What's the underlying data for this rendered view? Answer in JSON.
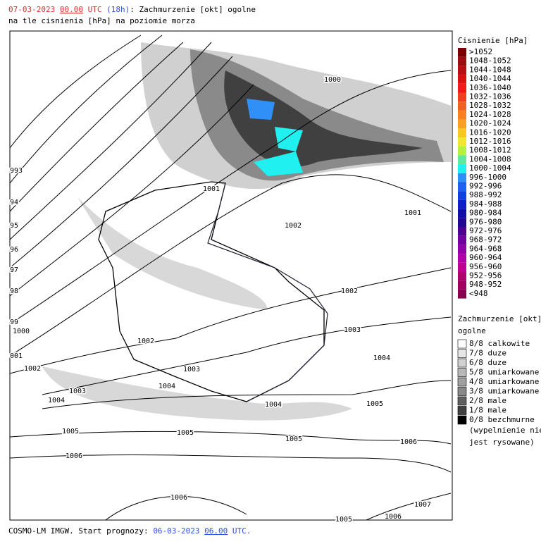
{
  "header": {
    "date": "07-03-2023",
    "time": "00.00",
    "utc": "UTC",
    "lead": "(18h)",
    "title": ": Zachmurzenie [okt] ogolne",
    "subtitle": "na tle cisnienia [hPa] na poziomie morza"
  },
  "footer": {
    "prefix": "COSMO-LM IMGW. Start prognozy:",
    "date": "06-03-2023",
    "time": "06.00",
    "utc": "UTC."
  },
  "pressure_legend": {
    "title": "Cisnienie [hPa]",
    "items": [
      {
        "label": ">1052",
        "color": "#7a0000"
      },
      {
        "label": "1048-1052",
        "color": "#9a1010"
      },
      {
        "label": "1044-1048",
        "color": "#b81010"
      },
      {
        "label": "1040-1044",
        "color": "#d81010"
      },
      {
        "label": "1036-1040",
        "color": "#f01818"
      },
      {
        "label": "1032-1036",
        "color": "#f04020"
      },
      {
        "label": "1028-1032",
        "color": "#f06020"
      },
      {
        "label": "1024-1028",
        "color": "#f88020"
      },
      {
        "label": "1020-1024",
        "color": "#f8a020"
      },
      {
        "label": "1016-1020",
        "color": "#f8c820"
      },
      {
        "label": "1012-1016",
        "color": "#f0e830"
      },
      {
        "label": "1008-1012",
        "color": "#b8f040"
      },
      {
        "label": "1004-1008",
        "color": "#60e8a0"
      },
      {
        "label": "1000-1004",
        "color": "#20f0f0"
      },
      {
        "label": "996-1000",
        "color": "#3090f8"
      },
      {
        "label": "992-996",
        "color": "#2060f0"
      },
      {
        "label": "988-992",
        "color": "#1040e0"
      },
      {
        "label": "984-988",
        "color": "#1020c8"
      },
      {
        "label": "980-984",
        "color": "#1010a8"
      },
      {
        "label": "976-980",
        "color": "#200890"
      },
      {
        "label": "972-976",
        "color": "#500090"
      },
      {
        "label": "968-972",
        "color": "#7000a0"
      },
      {
        "label": "964-968",
        "color": "#9000a8"
      },
      {
        "label": "960-964",
        "color": "#b000a8"
      },
      {
        "label": "956-960",
        "color": "#c00090"
      },
      {
        "label": "952-956",
        "color": "#b00070"
      },
      {
        "label": "948-952",
        "color": "#a00060"
      },
      {
        "label": "<948",
        "color": "#880050"
      }
    ]
  },
  "cloud_legend": {
    "title": "Zachmurzenie [okt]",
    "title2": "ogolne",
    "items": [
      {
        "label": "8/8 calkowite",
        "color": "#ffffff"
      },
      {
        "label": "7/8 duze",
        "color": "#e6e6e6"
      },
      {
        "label": "6/8 duze",
        "color": "#d0d0d0"
      },
      {
        "label": "5/8 umiarkowane",
        "color": "#b8b8b8"
      },
      {
        "label": "4/8 umiarkowane",
        "color": "#a0a0a0"
      },
      {
        "label": "3/8 umiarkowane",
        "color": "#888888"
      },
      {
        "label": "2/8 male",
        "color": "#606060"
      },
      {
        "label": "1/8 male",
        "color": "#404040"
      },
      {
        "label": "0/8 bezchmurne",
        "color": "#000000"
      }
    ],
    "note": [
      "(wypelnienie nie",
      "jest rysowane)"
    ]
  },
  "isobar_labels": [
    "1000",
    "1001",
    "1002",
    "1001",
    "1002",
    "1003",
    "1004",
    "1002",
    "1003",
    "1004",
    "1004",
    "1005",
    "993",
    "94",
    "95",
    "96",
    "97",
    "98",
    "99",
    "1000",
    "001",
    "1002",
    "1003",
    "1004",
    "1005",
    "1006",
    "1005",
    "1005",
    "1006",
    "1006",
    "1006",
    "1007",
    "1005"
  ]
}
